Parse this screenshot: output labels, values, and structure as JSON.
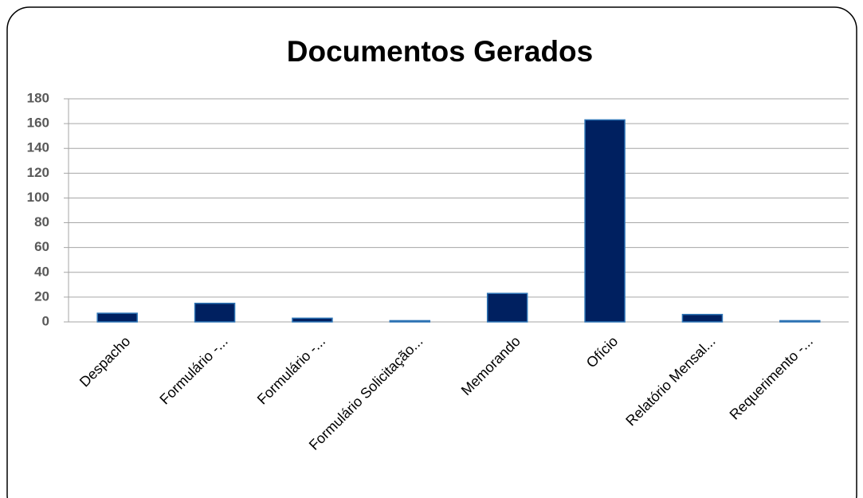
{
  "chart_data": {
    "type": "bar",
    "title": "Documentos Gerados",
    "categories": [
      "Despacho",
      "Formulário -...",
      "Formulário -...",
      "Formulário Solicitação...",
      "Memorando",
      "Ofício",
      "Relatório Mensal...",
      "Requerimento -..."
    ],
    "values": [
      7,
      15,
      3,
      1,
      23,
      163,
      6,
      1
    ],
    "color": "#002060",
    "ylim": [
      0,
      180
    ],
    "yticks": [
      0,
      20,
      40,
      60,
      80,
      100,
      120,
      140,
      160,
      180
    ],
    "grid": true
  }
}
